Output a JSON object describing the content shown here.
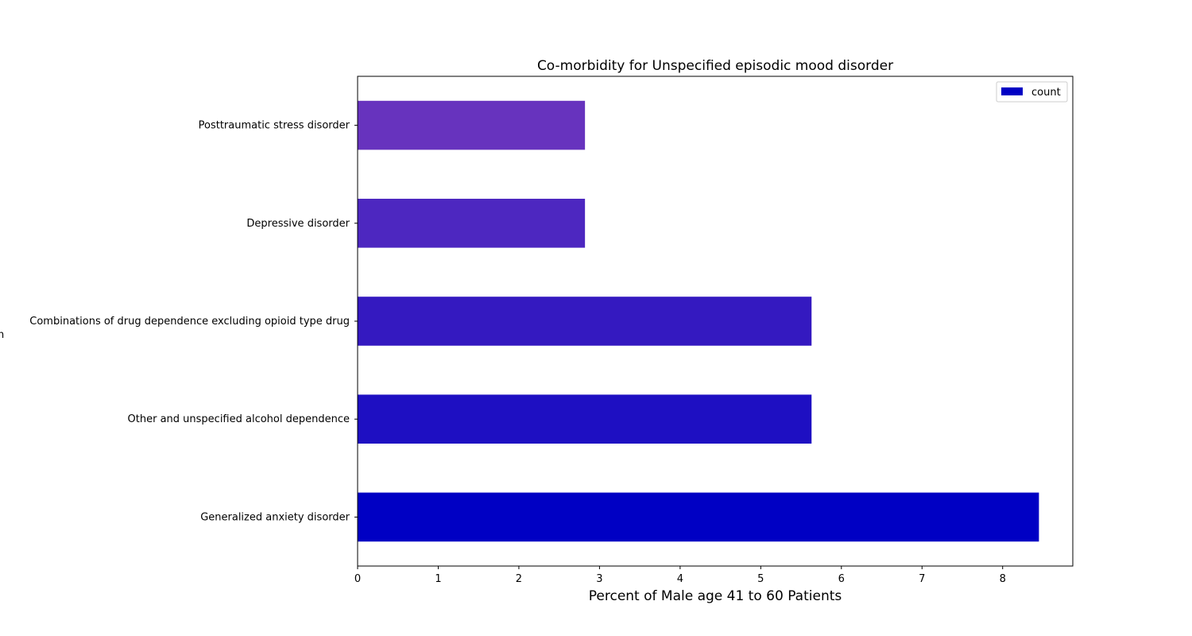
{
  "chart_data": {
    "type": "bar",
    "orientation": "horizontal",
    "title": "Co-morbidity for Unspecified episodic mood disorder",
    "xlabel": "Percent of Male age 41 to 60 Patients",
    "ylabel": "",
    "ylabel_partial": "n",
    "xlim": [
      0,
      8.87
    ],
    "xticks": [
      "0",
      "1",
      "2",
      "3",
      "4",
      "5",
      "6",
      "7",
      "8"
    ],
    "categories": [
      "Generalized anxiety disorder",
      "Other and unspecified alcohol dependence",
      "Combinations of drug dependence excluding opioid type drug",
      "Depressive disorder",
      "Posttraumatic stress disorder"
    ],
    "series": [
      {
        "name": "count",
        "values": [
          8.45,
          5.63,
          5.63,
          2.82,
          2.82
        ],
        "colors": [
          "#0000c4",
          "#1e0fc2",
          "#3419c0",
          "#4d27c0",
          "#6733be"
        ]
      }
    ],
    "legend": {
      "position": "upper-right",
      "label": "count",
      "color": "#0000c4"
    },
    "grid": false
  }
}
